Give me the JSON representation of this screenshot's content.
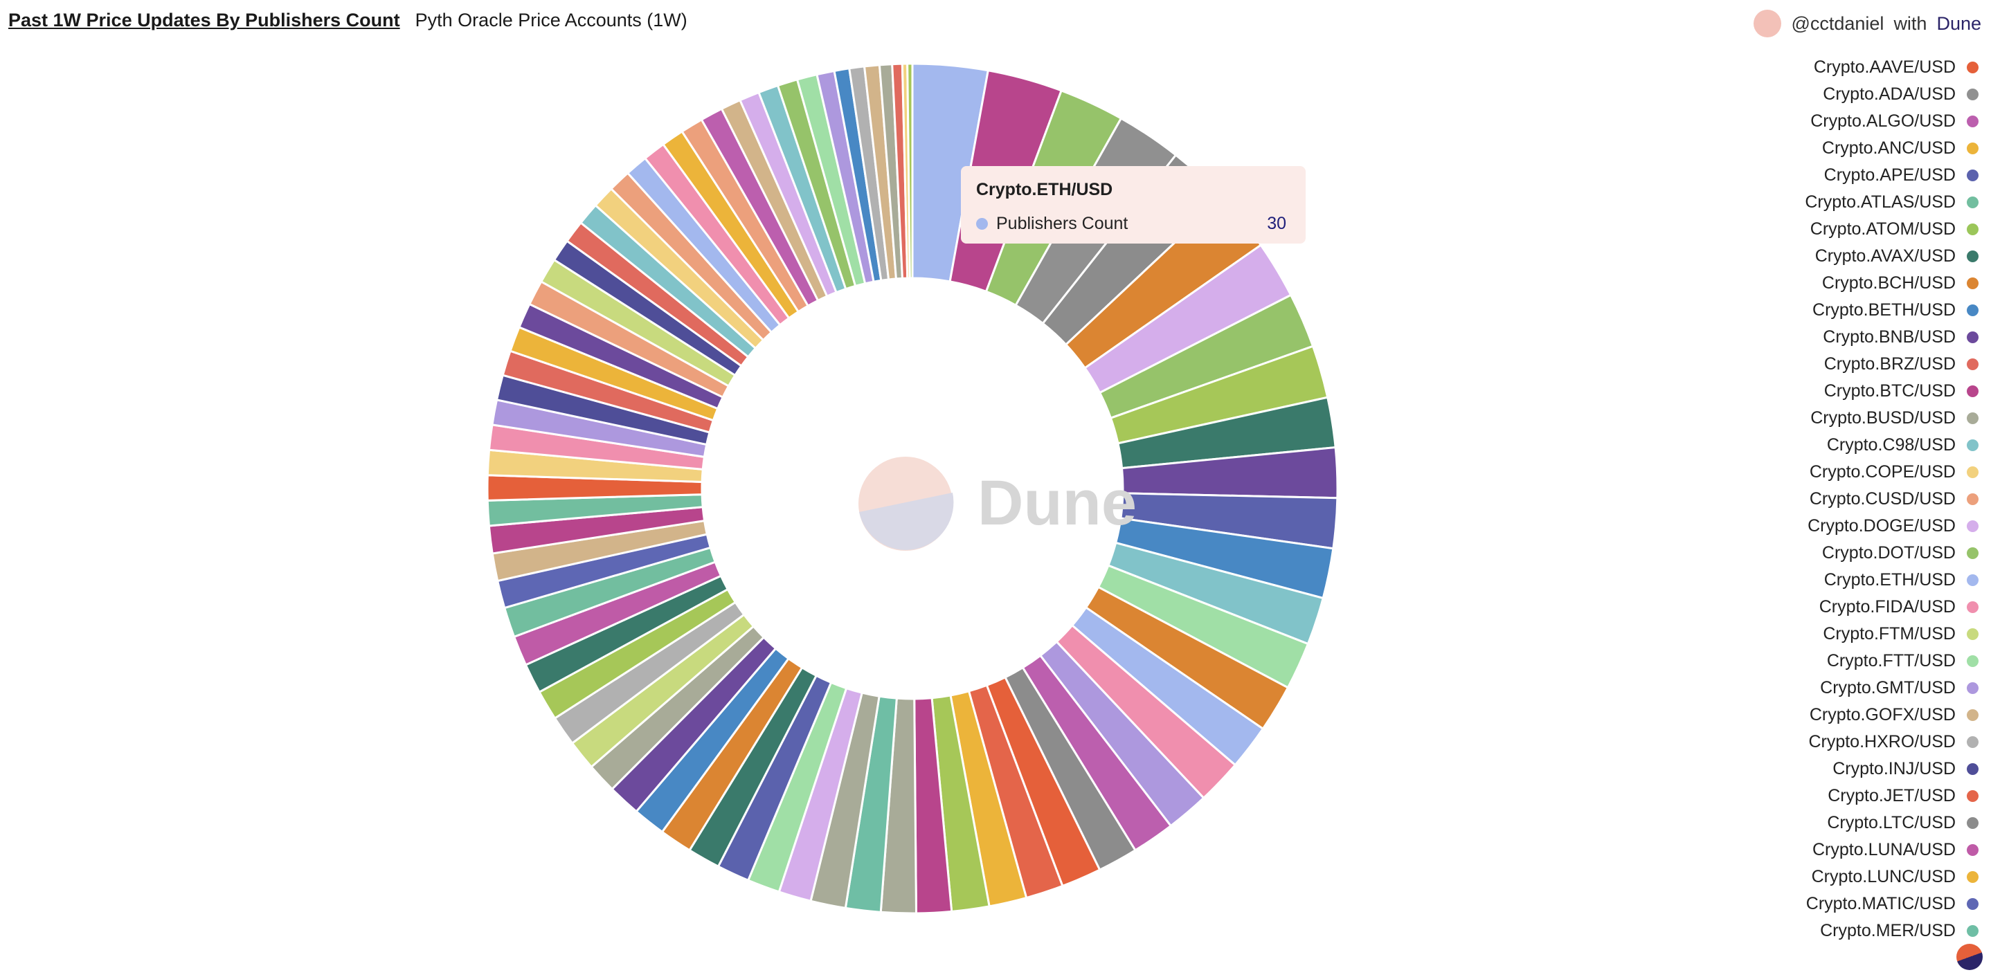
{
  "header": {
    "title": "Past 1W Price Updates By Publishers Count",
    "subtitle": "Pyth Oracle Price Accounts (1W)"
  },
  "credit": {
    "user": "@cctdaniel",
    "with": "with",
    "brand": "Dune"
  },
  "watermark": "Dune",
  "tooltip": {
    "title": "Crypto.ETH/USD",
    "series": "Publishers Count",
    "value": "30",
    "color": "#a3b8ee"
  },
  "legend": [
    {
      "label": "Crypto.AAVE/USD",
      "color": "#e5603a"
    },
    {
      "label": "Crypto.ADA/USD",
      "color": "#909090"
    },
    {
      "label": "Crypto.ALGO/USD",
      "color": "#bc5fae"
    },
    {
      "label": "Crypto.ANC/USD",
      "color": "#ecb43a"
    },
    {
      "label": "Crypto.APE/USD",
      "color": "#5b62ad"
    },
    {
      "label": "Crypto.ATLAS/USD",
      "color": "#72be9f"
    },
    {
      "label": "Crypto.ATOM/USD",
      "color": "#9bc65a"
    },
    {
      "label": "Crypto.AVAX/USD",
      "color": "#3a7a6b"
    },
    {
      "label": "Crypto.BCH/USD",
      "color": "#db8532"
    },
    {
      "label": "Crypto.BETH/USD",
      "color": "#4888c4"
    },
    {
      "label": "Crypto.BNB/USD",
      "color": "#6c4a9c"
    },
    {
      "label": "Crypto.BRZ/USD",
      "color": "#e06a5e"
    },
    {
      "label": "Crypto.BTC/USD",
      "color": "#b8458c"
    },
    {
      "label": "Crypto.BUSD/USD",
      "color": "#a8ab98"
    },
    {
      "label": "Crypto.C98/USD",
      "color": "#81c3c9"
    },
    {
      "label": "Crypto.COPE/USD",
      "color": "#f2d17e"
    },
    {
      "label": "Crypto.CUSD/USD",
      "color": "#eca07c"
    },
    {
      "label": "Crypto.DOGE/USD",
      "color": "#d5aeeb"
    },
    {
      "label": "Crypto.DOT/USD",
      "color": "#96c36a"
    },
    {
      "label": "Crypto.ETH/USD",
      "color": "#a3b8ee"
    },
    {
      "label": "Crypto.FIDA/USD",
      "color": "#f08fae"
    },
    {
      "label": "Crypto.FTM/USD",
      "color": "#c8da7e"
    },
    {
      "label": "Crypto.FTT/USD",
      "color": "#a0dfa6"
    },
    {
      "label": "Crypto.GMT/USD",
      "color": "#ad98de"
    },
    {
      "label": "Crypto.GOFX/USD",
      "color": "#d2b48a"
    },
    {
      "label": "Crypto.HXRO/USD",
      "color": "#b1b1b1"
    },
    {
      "label": "Crypto.INJ/USD",
      "color": "#4f4e98"
    },
    {
      "label": "Crypto.JET/USD",
      "color": "#e4654a"
    },
    {
      "label": "Crypto.LTC/USD",
      "color": "#8c8c8c"
    },
    {
      "label": "Crypto.LUNA/USD",
      "color": "#bf5ba7"
    },
    {
      "label": "Crypto.LUNC/USD",
      "color": "#ecb43a"
    },
    {
      "label": "Crypto.MATIC/USD",
      "color": "#5e67b4"
    },
    {
      "label": "Crypto.MER/USD",
      "color": "#6fbea5"
    }
  ],
  "chart_data": {
    "type": "pie",
    "donut": true,
    "series_name": "Publishers Count",
    "slices": [
      {
        "name": "Crypto.ETH/USD",
        "value": 30,
        "color": "#a3b8ee"
      },
      {
        "name": "Crypto.BTC/USD",
        "value": 30,
        "color": "#b8458c"
      },
      {
        "name": "Crypto.DOT/USD",
        "value": 26,
        "color": "#96c36a"
      },
      {
        "name": "Crypto.ADA/USD",
        "value": 26,
        "color": "#909090"
      },
      {
        "name": "Crypto.LTC/USD",
        "value": 25,
        "color": "#8c8c8c"
      },
      {
        "name": "Crypto.BCH/USD",
        "value": 24,
        "color": "#db8532"
      },
      {
        "name": "Crypto.DOGE/USD",
        "value": 23,
        "color": "#d5aeeb"
      },
      {
        "name": "Crypto.ATOM/USD",
        "value": 22,
        "color": "#96c36a"
      },
      {
        "name": "",
        "value": 21,
        "color": "#a6c758"
      },
      {
        "name": "Crypto.AVAX/USD",
        "value": 20,
        "color": "#3a7a6b"
      },
      {
        "name": "Crypto.BNB/USD",
        "value": 20,
        "color": "#6c4a9c"
      },
      {
        "name": "Crypto.APE/USD",
        "value": 20,
        "color": "#5b62ad"
      },
      {
        "name": "Crypto.BETH/USD",
        "value": 20,
        "color": "#4888c4"
      },
      {
        "name": "Crypto.C98/USD",
        "value": 19,
        "color": "#81c3c9"
      },
      {
        "name": "Crypto.FTT/USD",
        "value": 19,
        "color": "#a0dfa6"
      },
      {
        "name": "",
        "value": 19,
        "color": "#db8532"
      },
      {
        "name": "",
        "value": 18,
        "color": "#a3b8ee"
      },
      {
        "name": "Crypto.FIDA/USD",
        "value": 18,
        "color": "#f08fae"
      },
      {
        "name": "Crypto.GMT/USD",
        "value": 17,
        "color": "#ad98de"
      },
      {
        "name": "Crypto.ALGO/USD",
        "value": 17,
        "color": "#bc5fae"
      },
      {
        "name": "",
        "value": 16,
        "color": "#8c8c8c"
      },
      {
        "name": "Crypto.AAVE/USD",
        "value": 16,
        "color": "#e5603a"
      },
      {
        "name": "Crypto.JET/USD",
        "value": 15,
        "color": "#e4654a"
      },
      {
        "name": "Crypto.ANC/USD",
        "value": 15,
        "color": "#ecb43a"
      },
      {
        "name": "",
        "value": 15,
        "color": "#a6c758"
      },
      {
        "name": "",
        "value": 14,
        "color": "#b8458c"
      },
      {
        "name": "Crypto.BUSD/USD",
        "value": 14,
        "color": "#a8ab98"
      },
      {
        "name": "Crypto.MER/USD",
        "value": 14,
        "color": "#6fbea5"
      },
      {
        "name": "",
        "value": 14,
        "color": "#a8ab98"
      },
      {
        "name": "",
        "value": 13,
        "color": "#d5aeeb"
      },
      {
        "name": "",
        "value": 13,
        "color": "#a0dfa6"
      },
      {
        "name": "",
        "value": 13,
        "color": "#5b62ad"
      },
      {
        "name": "",
        "value": 13,
        "color": "#3a7a6b"
      },
      {
        "name": "",
        "value": 13,
        "color": "#db8532"
      },
      {
        "name": "",
        "value": 13,
        "color": "#4888c4"
      },
      {
        "name": "",
        "value": 13,
        "color": "#6c4a9c"
      },
      {
        "name": "",
        "value": 12,
        "color": "#a8ab98"
      },
      {
        "name": "",
        "value": 12,
        "color": "#c8da7e"
      },
      {
        "name": "Crypto.HXRO/USD",
        "value": 12,
        "color": "#b1b1b1"
      },
      {
        "name": "",
        "value": 12,
        "color": "#a6c758"
      },
      {
        "name": "",
        "value": 12,
        "color": "#3a7a6b"
      },
      {
        "name": "Crypto.LUNA/USD",
        "value": 12,
        "color": "#bf5ba7"
      },
      {
        "name": "Crypto.ATLAS/USD",
        "value": 12,
        "color": "#72be9f"
      },
      {
        "name": "Crypto.MATIC/USD",
        "value": 11,
        "color": "#5e67b4"
      },
      {
        "name": "Crypto.GOFX/USD",
        "value": 11,
        "color": "#d2b48a"
      },
      {
        "name": "",
        "value": 11,
        "color": "#b8458c"
      },
      {
        "name": "",
        "value": 10,
        "color": "#72be9f"
      },
      {
        "name": "",
        "value": 10,
        "color": "#e5603a"
      },
      {
        "name": "Crypto.COPE/USD",
        "value": 10,
        "color": "#f2d17e"
      },
      {
        "name": "",
        "value": 10,
        "color": "#f08fae"
      },
      {
        "name": "",
        "value": 10,
        "color": "#ad98de"
      },
      {
        "name": "Crypto.INJ/USD",
        "value": 10,
        "color": "#4f4e98"
      },
      {
        "name": "Crypto.BRZ/USD",
        "value": 10,
        "color": "#e06a5e"
      },
      {
        "name": "Crypto.LUNC/USD",
        "value": 10,
        "color": "#ecb43a"
      },
      {
        "name": "",
        "value": 10,
        "color": "#6c4a9c"
      },
      {
        "name": "Crypto.CUSD/USD",
        "value": 10,
        "color": "#eca07c"
      },
      {
        "name": "Crypto.FTM/USD",
        "value": 10,
        "color": "#c8da7e"
      },
      {
        "name": "",
        "value": 9,
        "color": "#4f4e98"
      },
      {
        "name": "",
        "value": 9,
        "color": "#e06a5e"
      },
      {
        "name": "",
        "value": 9,
        "color": "#81c3c9"
      },
      {
        "name": "",
        "value": 9,
        "color": "#f2d17e"
      },
      {
        "name": "",
        "value": 9,
        "color": "#eca07c"
      },
      {
        "name": "",
        "value": 9,
        "color": "#a3b8ee"
      },
      {
        "name": "",
        "value": 9,
        "color": "#f08fae"
      },
      {
        "name": "",
        "value": 9,
        "color": "#ecb43a"
      },
      {
        "name": "",
        "value": 9,
        "color": "#eca07c"
      },
      {
        "name": "",
        "value": 9,
        "color": "#bc5fae"
      },
      {
        "name": "",
        "value": 8,
        "color": "#d2b48a"
      },
      {
        "name": "",
        "value": 8,
        "color": "#d5aeeb"
      },
      {
        "name": "",
        "value": 8,
        "color": "#81c3c9"
      },
      {
        "name": "",
        "value": 8,
        "color": "#96c36a"
      },
      {
        "name": "",
        "value": 8,
        "color": "#a0dfa6"
      },
      {
        "name": "",
        "value": 7,
        "color": "#ad98de"
      },
      {
        "name": "",
        "value": 6,
        "color": "#4888c4"
      },
      {
        "name": "",
        "value": 6,
        "color": "#b1b1b1"
      },
      {
        "name": "",
        "value": 6,
        "color": "#d2b48a"
      },
      {
        "name": "",
        "value": 5,
        "color": "#a8ab98"
      },
      {
        "name": "",
        "value": 4,
        "color": "#e06a5e"
      },
      {
        "name": "",
        "value": 2,
        "color": "#f2d17e"
      },
      {
        "name": "",
        "value": 2,
        "color": "#a6c758"
      }
    ]
  }
}
